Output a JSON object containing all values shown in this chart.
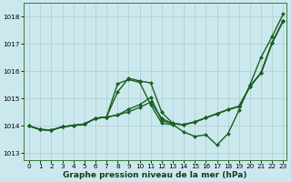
{
  "xlabel": "Graphe pression niveau de la mer (hPa)",
  "background_color": "#cce8ef",
  "grid_color": "#aacccc",
  "line_color": "#1a6020",
  "xlim_min": -0.5,
  "xlim_max": 23.3,
  "ylim_min": 1012.75,
  "ylim_max": 1018.5,
  "yticks": [
    1013,
    1014,
    1015,
    1016,
    1017,
    1018
  ],
  "xticks": [
    0,
    1,
    2,
    3,
    4,
    5,
    6,
    7,
    8,
    9,
    10,
    11,
    12,
    13,
    14,
    15,
    16,
    17,
    18,
    19,
    20,
    21,
    22,
    23
  ],
  "series": [
    [
      1014.0,
      1013.87,
      1013.85,
      1013.97,
      1014.02,
      1014.07,
      1014.28,
      1014.33,
      1014.4,
      1014.52,
      1014.68,
      1014.88,
      1014.28,
      1014.08,
      1014.05,
      1014.15,
      1014.3,
      1014.45,
      1014.6,
      1014.72,
      1015.45,
      1015.95,
      1017.05,
      1017.85
    ],
    [
      1014.0,
      1013.87,
      1013.85,
      1013.97,
      1014.02,
      1014.07,
      1014.28,
      1014.33,
      1014.4,
      1014.62,
      1014.78,
      1015.05,
      1014.2,
      1014.08,
      1014.05,
      1014.15,
      1014.3,
      1014.45,
      1014.6,
      1014.72,
      1015.45,
      1015.95,
      1017.05,
      1017.85
    ],
    [
      1014.0,
      1013.87,
      1013.85,
      1013.97,
      1014.02,
      1014.07,
      1014.28,
      1014.33,
      1015.25,
      1015.75,
      1015.65,
      1015.58,
      1014.5,
      1014.1,
      1014.05,
      1014.15,
      1014.3,
      1014.45,
      1014.6,
      1014.72,
      1015.45,
      1015.95,
      1017.05,
      1017.85
    ],
    [
      1014.0,
      1013.87,
      1013.85,
      1013.97,
      1014.02,
      1014.07,
      1014.28,
      1014.33,
      1015.55,
      1015.7,
      1015.6,
      1014.78,
      1014.1,
      1014.05,
      1013.78,
      1013.62,
      1013.68,
      1013.3,
      1013.72,
      1014.58,
      1015.52,
      1016.52,
      1017.28,
      1018.1
    ]
  ],
  "marker": "D",
  "markersize": 2.0,
  "linewidth": 1.0,
  "xlabel_fontsize": 6.5,
  "tick_fontsize": 5.2
}
